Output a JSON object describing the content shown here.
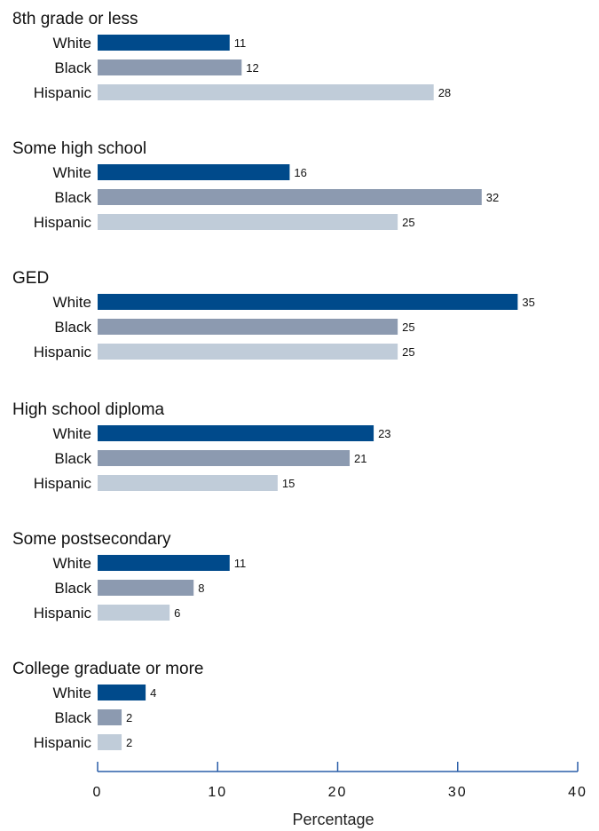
{
  "chart_data": {
    "type": "bar",
    "orientation": "horizontal",
    "groups": [
      {
        "name": "8th grade or less",
        "bars": [
          {
            "category": "White",
            "value": 11
          },
          {
            "category": "Black",
            "value": 12
          },
          {
            "category": "Hispanic",
            "value": 28
          }
        ]
      },
      {
        "name": "Some high school",
        "bars": [
          {
            "category": "White",
            "value": 16
          },
          {
            "category": "Black",
            "value": 32
          },
          {
            "category": "Hispanic",
            "value": 25
          }
        ]
      },
      {
        "name": "GED",
        "bars": [
          {
            "category": "White",
            "value": 35
          },
          {
            "category": "Black",
            "value": 25
          },
          {
            "category": "Hispanic",
            "value": 25
          }
        ]
      },
      {
        "name": "High school diploma",
        "bars": [
          {
            "category": "White",
            "value": 23
          },
          {
            "category": "Black",
            "value": 21
          },
          {
            "category": "Hispanic",
            "value": 15
          }
        ]
      },
      {
        "name": "Some postsecondary",
        "bars": [
          {
            "category": "White",
            "value": 11
          },
          {
            "category": "Black",
            "value": 8
          },
          {
            "category": "Hispanic",
            "value": 6
          }
        ]
      },
      {
        "name": "College graduate or more",
        "bars": [
          {
            "category": "White",
            "value": 4
          },
          {
            "category": "Black",
            "value": 2
          },
          {
            "category": "Hispanic",
            "value": 2
          }
        ]
      }
    ],
    "colors": {
      "White": "#004a8b",
      "Black": "#8c9ab0",
      "Hispanic": "#c0ccd9"
    },
    "axis_color": "#2a5ea8",
    "xlabel": "Percentage",
    "xlim": [
      0,
      40
    ],
    "xticks": [
      0,
      10,
      20,
      30,
      40
    ],
    "grid": false
  }
}
